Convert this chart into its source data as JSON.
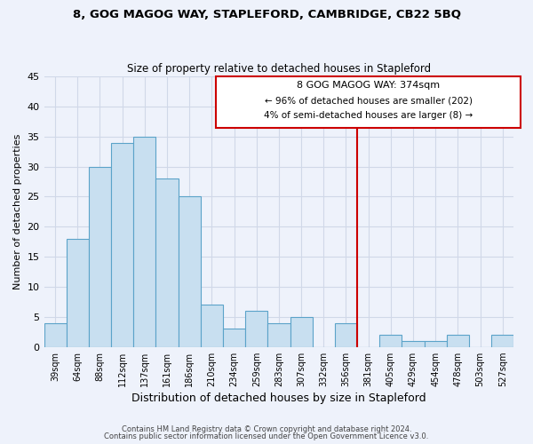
{
  "title": "8, GOG MAGOG WAY, STAPLEFORD, CAMBRIDGE, CB22 5BQ",
  "subtitle": "Size of property relative to detached houses in Stapleford",
  "xlabel": "Distribution of detached houses by size in Stapleford",
  "ylabel": "Number of detached properties",
  "footer_line1": "Contains HM Land Registry data © Crown copyright and database right 2024.",
  "footer_line2": "Contains public sector information licensed under the Open Government Licence v3.0.",
  "bar_labels": [
    "39sqm",
    "64sqm",
    "88sqm",
    "112sqm",
    "137sqm",
    "161sqm",
    "186sqm",
    "210sqm",
    "234sqm",
    "259sqm",
    "283sqm",
    "307sqm",
    "332sqm",
    "356sqm",
    "381sqm",
    "405sqm",
    "429sqm",
    "454sqm",
    "478sqm",
    "503sqm",
    "527sqm"
  ],
  "bar_heights": [
    4,
    18,
    30,
    34,
    35,
    28,
    25,
    7,
    3,
    6,
    4,
    5,
    0,
    4,
    0,
    2,
    1,
    1,
    2,
    0,
    2
  ],
  "bar_color": "#c8dff0",
  "bar_edge_color": "#5ba3c9",
  "vline_color": "#cc0000",
  "annotation_line1": "8 GOG MAGOG WAY: 374sqm",
  "annotation_line2": "← 96% of detached houses are smaller (202)",
  "annotation_line3": "4% of semi-detached houses are larger (8) →",
  "annotation_box_edgecolor": "#cc0000",
  "ylim": [
    0,
    45
  ],
  "yticks": [
    0,
    5,
    10,
    15,
    20,
    25,
    30,
    35,
    40,
    45
  ],
  "grid_color": "#d0d8e8",
  "background_color": "#eef2fb"
}
